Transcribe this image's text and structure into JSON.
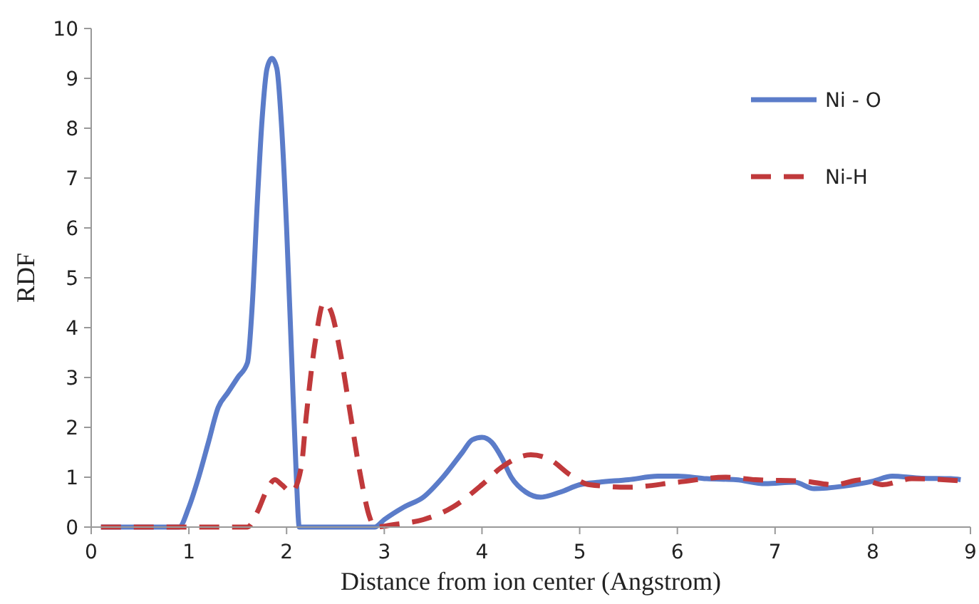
{
  "chart_data": {
    "type": "line",
    "xlabel": "Distance from ion center (Angstrom)",
    "ylabel": "RDF",
    "xlim": [
      0,
      9
    ],
    "xticks": [
      0,
      1,
      2,
      3,
      4,
      5,
      6,
      7,
      8,
      9
    ],
    "ylim": [
      0,
      10
    ],
    "yticks": [
      0,
      1,
      2,
      3,
      4,
      5,
      6,
      7,
      8,
      9,
      10
    ],
    "grid": false,
    "legend": "top right",
    "series": [
      {
        "name": "Ni - O",
        "color": "#5b7cc9",
        "line_style": "solid",
        "x": [
          0.1,
          0.9,
          1.0,
          1.1,
          1.2,
          1.3,
          1.4,
          1.5,
          1.6,
          1.65,
          1.7,
          1.75,
          1.8,
          1.85,
          1.9,
          1.95,
          2.0,
          2.05,
          2.1,
          2.13,
          2.4,
          2.9,
          3.0,
          3.2,
          3.4,
          3.6,
          3.8,
          3.9,
          4.0,
          4.1,
          4.2,
          4.3,
          4.45,
          4.6,
          4.8,
          5.0,
          5.2,
          5.5,
          5.8,
          6.0,
          6.3,
          6.6,
          6.9,
          7.2,
          7.4,
          7.7,
          8.0,
          8.2,
          8.5,
          8.8,
          8.9
        ],
        "values": [
          0,
          0,
          0.4,
          1.0,
          1.7,
          2.4,
          2.7,
          3.0,
          3.3,
          4.5,
          6.5,
          8.2,
          9.2,
          9.4,
          9.2,
          8,
          6,
          3.5,
          1,
          0,
          0,
          0,
          0.15,
          0.4,
          0.6,
          1.0,
          1.5,
          1.75,
          1.8,
          1.7,
          1.4,
          1.0,
          0.7,
          0.6,
          0.7,
          0.85,
          0.9,
          0.95,
          1.02,
          1.02,
          0.97,
          0.95,
          0.87,
          0.9,
          0.77,
          0.82,
          0.92,
          1.02,
          0.98,
          0.97,
          0.95
        ]
      },
      {
        "name": "Ni-H",
        "color": "#c0393b",
        "line_style": "dashed",
        "x": [
          0.1,
          1.6,
          1.7,
          1.8,
          1.88,
          1.95,
          2.05,
          2.15,
          2.2,
          2.3,
          2.38,
          2.45,
          2.55,
          2.65,
          2.75,
          2.85,
          2.9,
          3.1,
          3.4,
          3.7,
          4.0,
          4.2,
          4.5,
          4.7,
          4.9,
          5.1,
          5.5,
          6.0,
          6.5,
          6.8,
          7.3,
          7.6,
          7.9,
          8.1,
          8.4,
          8.9
        ],
        "values": [
          0,
          0,
          0.3,
          0.75,
          0.95,
          0.85,
          0.7,
          1.2,
          2.2,
          3.8,
          4.5,
          4.35,
          3.5,
          2.3,
          1.1,
          0.2,
          0,
          0.05,
          0.15,
          0.4,
          0.85,
          1.2,
          1.45,
          1.35,
          1.05,
          0.85,
          0.8,
          0.9,
          1.0,
          0.95,
          0.92,
          0.85,
          0.95,
          0.85,
          0.97,
          0.93
        ]
      }
    ]
  }
}
